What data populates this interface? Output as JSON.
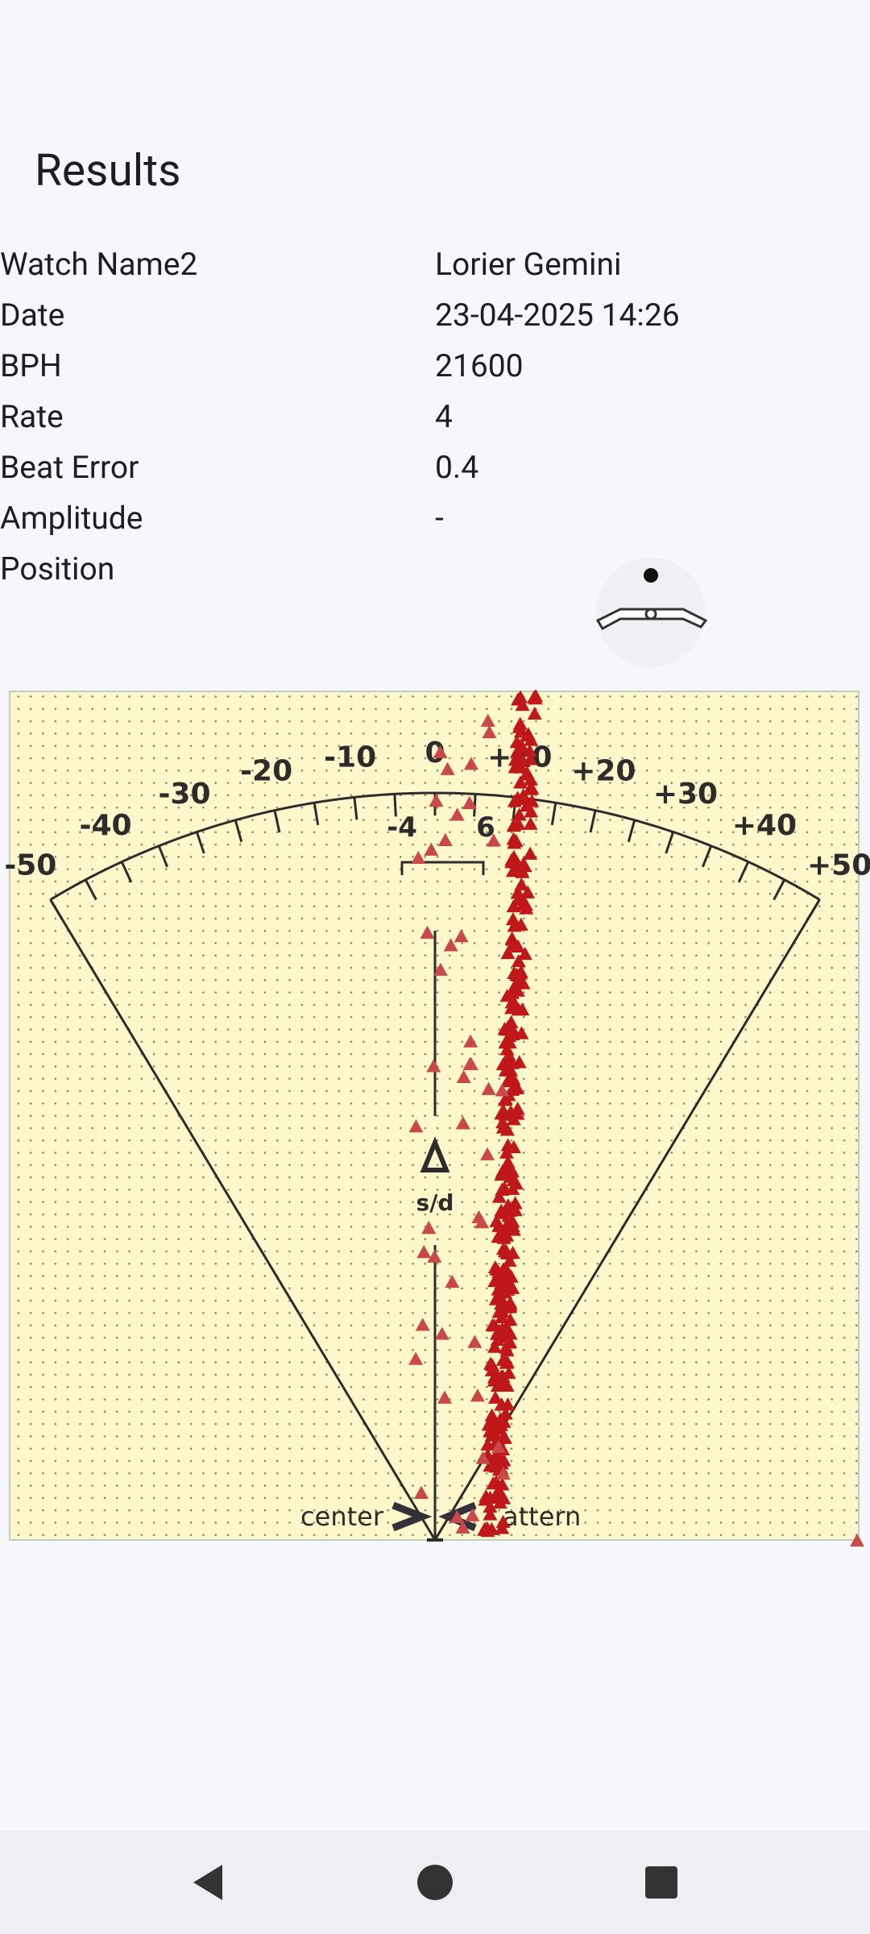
{
  "header": {
    "title": "Results"
  },
  "rows": [
    {
      "label": "Watch Name2",
      "value": "Lorier Gemini"
    },
    {
      "label": "Date",
      "value": "23-04-2025 14:26"
    },
    {
      "label": "BPH",
      "value": "21600"
    },
    {
      "label": "Rate",
      "value": "4"
    },
    {
      "label": "Beat Error",
      "value": "0.4"
    },
    {
      "label": "Amplitude",
      "value": "-"
    },
    {
      "label": "Position",
      "value": ""
    }
  ],
  "dial": {
    "ticks": [
      "-50",
      "-40",
      "-30",
      "-20",
      "-10",
      "0",
      "+10",
      "+20",
      "+30",
      "+40",
      "+50"
    ],
    "bracket": [
      "-4",
      "6"
    ],
    "unit": "s/d",
    "center_label": "center",
    "pattern_label": "attern"
  }
}
